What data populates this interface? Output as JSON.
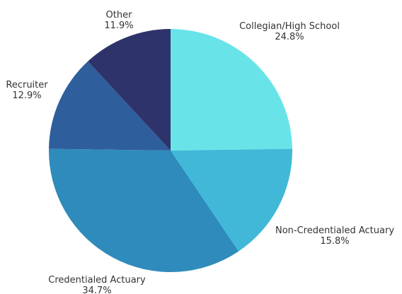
{
  "chart_data": {
    "type": "pie",
    "title": "",
    "slices": [
      {
        "label": "Collegian/High School",
        "value": 24.8,
        "value_label": "24.8%",
        "color": "#68E4E8"
      },
      {
        "label": "Non-Credentialed Actuary",
        "value": 15.8,
        "value_label": "15.8%",
        "color": "#41B8D7"
      },
      {
        "label": "Credentialed Actuary",
        "value": 34.7,
        "value_label": "34.7%",
        "color": "#2F8BBB"
      },
      {
        "label": "Recruiter",
        "value": 12.9,
        "value_label": "12.9%",
        "color": "#2E5F9C"
      },
      {
        "label": "Other",
        "value": 11.9,
        "value_label": "11.9%",
        "color": "#2F336B"
      }
    ],
    "start": "12 o'clock",
    "direction": "clockwise",
    "legend": "none"
  }
}
